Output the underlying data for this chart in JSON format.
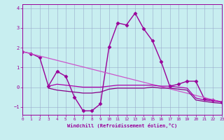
{
  "xlabel": "Windchill (Refroidissement éolien,°C)",
  "background_color": "#c8eef0",
  "line_color": "#990099",
  "grid_color": "#99aacc",
  "xlim": [
    0,
    23
  ],
  "ylim": [
    -1.4,
    4.2
  ],
  "xticks": [
    0,
    1,
    2,
    3,
    4,
    5,
    6,
    7,
    8,
    9,
    10,
    11,
    12,
    13,
    14,
    15,
    16,
    17,
    18,
    19,
    20,
    21,
    22,
    23
  ],
  "yticks": [
    -1,
    0,
    1,
    2,
    3,
    4
  ],
  "series": [
    {
      "x": [
        0,
        1,
        2,
        3,
        4,
        5,
        6,
        7,
        8,
        9,
        10,
        11,
        12,
        13,
        14,
        15,
        16,
        17,
        18,
        19,
        20,
        21,
        22,
        23
      ],
      "y": [
        1.8,
        1.7,
        1.5,
        0.05,
        0.8,
        0.55,
        -0.5,
        -1.2,
        -1.2,
        -0.85,
        2.05,
        3.25,
        3.15,
        3.75,
        2.95,
        2.35,
        1.3,
        0.05,
        0.15,
        0.3,
        0.3,
        -0.6,
        -0.65,
        -0.75
      ],
      "color": "#990099",
      "marker": "D",
      "markersize": 2.5,
      "linewidth": 1.0
    },
    {
      "x": [
        0,
        23
      ],
      "y": [
        1.8,
        -0.75
      ],
      "color": "#cc55cc",
      "marker": null,
      "markersize": 0,
      "linewidth": 0.9
    },
    {
      "x": [
        3,
        4,
        5,
        6,
        7,
        8,
        9,
        10,
        11,
        12,
        13,
        14,
        15,
        16,
        17,
        18,
        19,
        20,
        21,
        22,
        23
      ],
      "y": [
        0.05,
        0.15,
        0.1,
        0.05,
        0.0,
        0.0,
        0.0,
        0.05,
        0.1,
        0.1,
        0.1,
        0.1,
        0.1,
        0.05,
        0.05,
        0.0,
        -0.05,
        -0.55,
        -0.65,
        -0.7,
        -0.75
      ],
      "color": "#aa00aa",
      "marker": null,
      "markersize": 0,
      "linewidth": 0.9
    },
    {
      "x": [
        3,
        4,
        5,
        6,
        7,
        8,
        9,
        10,
        11,
        12,
        13,
        14,
        15,
        16,
        17,
        18,
        19,
        20,
        21,
        22,
        23
      ],
      "y": [
        -0.05,
        -0.15,
        -0.2,
        -0.25,
        -0.3,
        -0.3,
        -0.25,
        -0.1,
        -0.05,
        -0.05,
        -0.05,
        -0.05,
        0.0,
        -0.05,
        -0.05,
        -0.1,
        -0.15,
        -0.65,
        -0.72,
        -0.78,
        -0.82
      ],
      "color": "#880088",
      "marker": null,
      "markersize": 0,
      "linewidth": 0.9
    }
  ]
}
